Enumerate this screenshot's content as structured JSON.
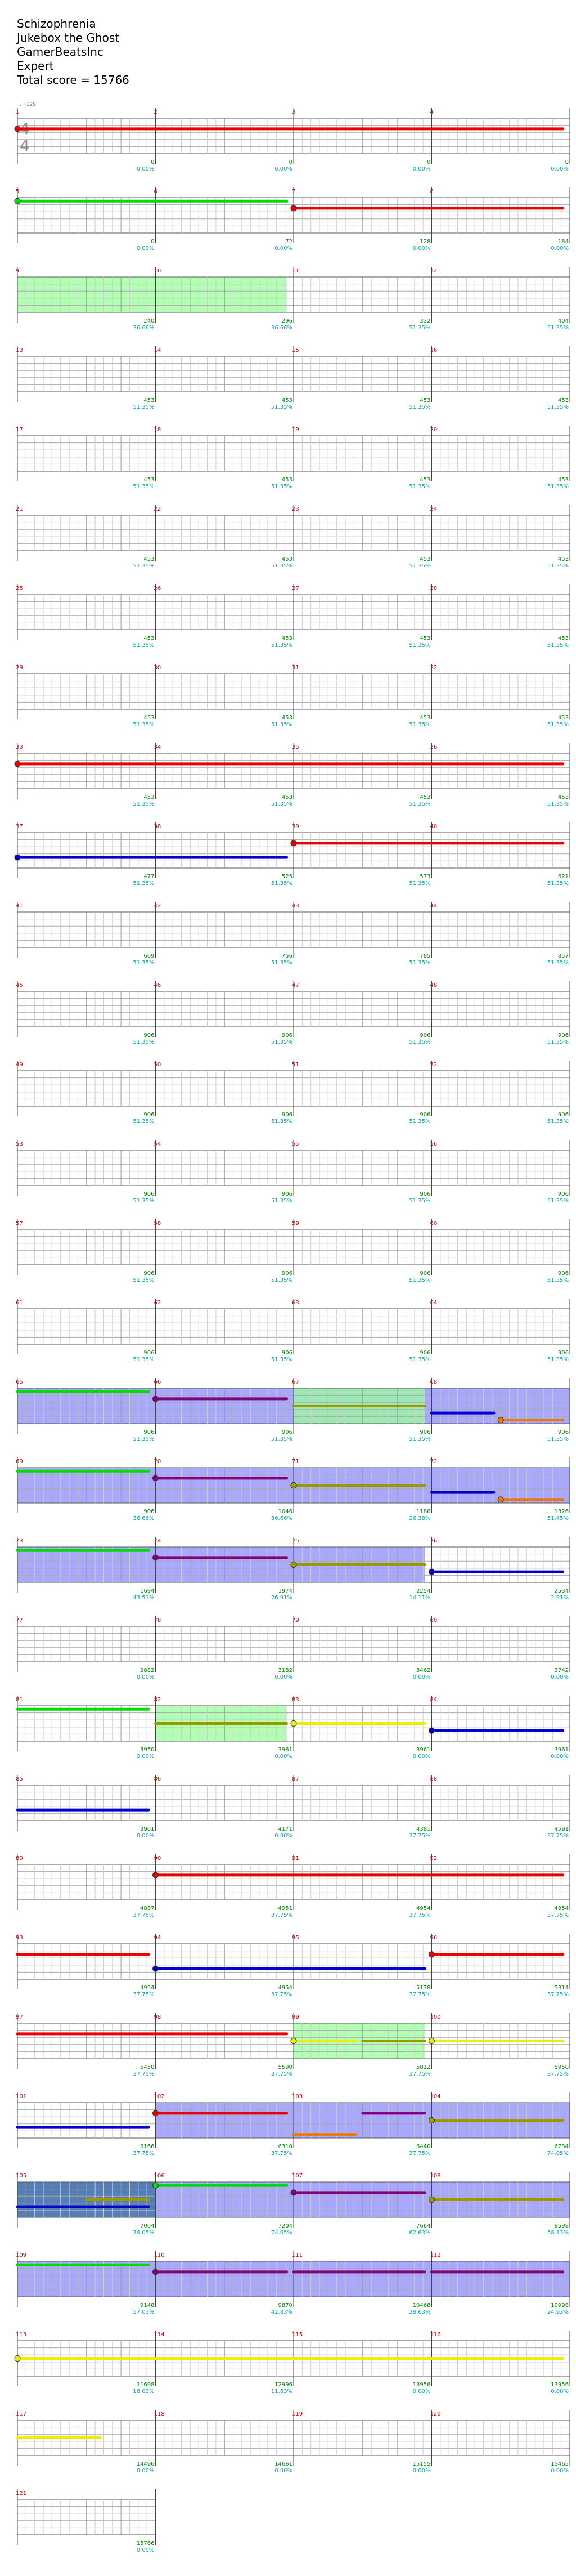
{
  "header": {
    "song": "Schizophrenia",
    "album": "Jukebox the Ghost",
    "charter": "GamerBeatsInc",
    "difficulty": "Expert",
    "total_score_label": "Total score = 15766"
  },
  "tempo_label": "♩=129",
  "time_signature": {
    "top": "4",
    "bottom": "4"
  },
  "colors": {
    "green_note": "#00dd00",
    "red_note": "#ee0000",
    "yellow_note": "#eeee00",
    "blue_note": "#0000cc",
    "orange_note": "#ee7700",
    "purple_note": "#800080",
    "olive_note": "#999900",
    "sp_fill": "#9999ff",
    "solo_fill": "#99ff99",
    "measure_number": "#cc0000",
    "score_text": "#008800",
    "percent_text": "#00aaaa",
    "multiplier_text": "#888888"
  },
  "measures": [
    {
      "n": 1,
      "score": "0",
      "pct": "0.00%"
    },
    {
      "n": 2,
      "score": "0",
      "pct": "0.00%"
    },
    {
      "n": 3,
      "score": "0",
      "pct": "0.00%"
    },
    {
      "n": 4,
      "score": "0",
      "pct": "0.00%"
    },
    {
      "n": 5,
      "score": "0",
      "pct": "0.00%"
    },
    {
      "n": 6,
      "score": "72",
      "pct": "0.00%"
    },
    {
      "n": 7,
      "score": "128",
      "pct": "0.00%"
    },
    {
      "n": 8,
      "score": "184",
      "pct": "0.00%"
    },
    {
      "n": 9,
      "score": "240",
      "pct": "36.66%"
    },
    {
      "n": 10,
      "score": "296",
      "pct": "36.66%"
    },
    {
      "n": 11,
      "score": "332",
      "pct": "51.35%"
    },
    {
      "n": 12,
      "score": "404",
      "pct": "51.35%"
    },
    {
      "n": 13,
      "score": "453",
      "pct": "51.35%"
    },
    {
      "n": 14,
      "score": "453",
      "pct": "51.35%"
    },
    {
      "n": 15,
      "score": "453",
      "pct": "51.35%"
    },
    {
      "n": 16,
      "score": "453",
      "pct": "51.35%"
    },
    {
      "n": 17,
      "score": "453",
      "pct": "51.35%"
    },
    {
      "n": 18,
      "score": "453",
      "pct": "51.35%"
    },
    {
      "n": 19,
      "score": "453",
      "pct": "51.35%"
    },
    {
      "n": 20,
      "score": "453",
      "pct": "51.35%"
    },
    {
      "n": 21,
      "score": "453",
      "pct": "51.35%"
    },
    {
      "n": 22,
      "score": "453",
      "pct": "51.35%"
    },
    {
      "n": 23,
      "score": "453",
      "pct": "51.35%"
    },
    {
      "n": 24,
      "score": "453",
      "pct": "51.35%"
    },
    {
      "n": 25,
      "score": "453",
      "pct": "51.35%"
    },
    {
      "n": 26,
      "score": "453",
      "pct": "51.35%"
    },
    {
      "n": 27,
      "score": "453",
      "pct": "51.35%"
    },
    {
      "n": 28,
      "score": "453",
      "pct": "51.35%"
    },
    {
      "n": 29,
      "score": "453",
      "pct": "51.35%"
    },
    {
      "n": 30,
      "score": "453",
      "pct": "51.35%"
    },
    {
      "n": 31,
      "score": "453",
      "pct": "51.35%"
    },
    {
      "n": 32,
      "score": "453",
      "pct": "51.35%"
    },
    {
      "n": 33,
      "score": "453",
      "pct": "51.35%"
    },
    {
      "n": 34,
      "score": "453",
      "pct": "51.35%"
    },
    {
      "n": 35,
      "score": "453",
      "pct": "51.35%"
    },
    {
      "n": 36,
      "score": "453",
      "pct": "51.35%"
    },
    {
      "n": 37,
      "score": "477",
      "pct": "51.35%"
    },
    {
      "n": 38,
      "score": "525",
      "pct": "51.35%"
    },
    {
      "n": 39,
      "score": "573",
      "pct": "51.35%"
    },
    {
      "n": 40,
      "score": "621",
      "pct": "51.35%"
    },
    {
      "n": 41,
      "score": "669",
      "pct": "51.35%"
    },
    {
      "n": 42,
      "score": "756",
      "pct": "51.35%"
    },
    {
      "n": 43,
      "score": "785",
      "pct": "51.35%"
    },
    {
      "n": 44,
      "score": "857",
      "pct": "51.35%"
    },
    {
      "n": 45,
      "score": "906",
      "pct": "51.35%"
    },
    {
      "n": 46,
      "score": "906",
      "pct": "51.35%"
    },
    {
      "n": 47,
      "score": "906",
      "pct": "51.35%"
    },
    {
      "n": 48,
      "score": "906",
      "pct": "51.35%"
    },
    {
      "n": 49,
      "score": "906",
      "pct": "51.35%"
    },
    {
      "n": 50,
      "score": "906",
      "pct": "51.35%"
    },
    {
      "n": 51,
      "score": "906",
      "pct": "51.35%"
    },
    {
      "n": 52,
      "score": "906",
      "pct": "51.35%"
    },
    {
      "n": 53,
      "score": "906",
      "pct": "51.35%"
    },
    {
      "n": 54,
      "score": "906",
      "pct": "51.35%"
    },
    {
      "n": 55,
      "score": "906",
      "pct": "51.35%"
    },
    {
      "n": 56,
      "score": "906",
      "pct": "51.35%"
    },
    {
      "n": 57,
      "score": "906",
      "pct": "51.35%"
    },
    {
      "n": 58,
      "score": "906",
      "pct": "51.35%"
    },
    {
      "n": 59,
      "score": "906",
      "pct": "51.35%"
    },
    {
      "n": 60,
      "score": "906",
      "pct": "51.35%"
    },
    {
      "n": 61,
      "score": "906",
      "pct": "51.35%"
    },
    {
      "n": 62,
      "score": "906",
      "pct": "51.35%"
    },
    {
      "n": 63,
      "score": "906",
      "pct": "51.35%"
    },
    {
      "n": 64,
      "score": "906",
      "pct": "51.35%"
    },
    {
      "n": 65,
      "score": "906",
      "pct": "51.35%"
    },
    {
      "n": 66,
      "score": "906",
      "pct": "51.35%"
    },
    {
      "n": 67,
      "score": "906",
      "pct": "51.35%"
    },
    {
      "n": 68,
      "score": "906",
      "pct": "51.35%"
    },
    {
      "n": 69,
      "score": "906",
      "pct": "36.66%"
    },
    {
      "n": 70,
      "score": "1046",
      "pct": "36.66%"
    },
    {
      "n": 71,
      "score": "1186",
      "pct": "26.38%"
    },
    {
      "n": 72,
      "score": "1326",
      "pct": "51.45%"
    },
    {
      "n": 73,
      "score": "1694",
      "pct": "43.51%"
    },
    {
      "n": 74,
      "score": "1974",
      "pct": "26.91%"
    },
    {
      "n": 75,
      "score": "2254",
      "pct": "14.11%"
    },
    {
      "n": 76,
      "score": "2534",
      "pct": "2.91%"
    },
    {
      "n": 77,
      "score": "2882",
      "pct": "0.00%"
    },
    {
      "n": 78,
      "score": "3182",
      "pct": "0.00%"
    },
    {
      "n": 79,
      "score": "3462",
      "pct": "0.00%"
    },
    {
      "n": 80,
      "score": "3742",
      "pct": "0.00%"
    },
    {
      "n": 81,
      "score": "3950",
      "pct": "0.00%"
    },
    {
      "n": 82,
      "score": "3961",
      "pct": "0.00%"
    },
    {
      "n": 83,
      "score": "3961",
      "pct": "0.00%"
    },
    {
      "n": 84,
      "score": "3961",
      "pct": "0.00%"
    },
    {
      "n": 85,
      "score": "3961",
      "pct": "0.00%"
    },
    {
      "n": 86,
      "score": "4171",
      "pct": "0.00%"
    },
    {
      "n": 87,
      "score": "4381",
      "pct": "37.75%"
    },
    {
      "n": 88,
      "score": "4591",
      "pct": "37.75%"
    },
    {
      "n": 89,
      "score": "4887",
      "pct": "37.75%"
    },
    {
      "n": 90,
      "score": "4951",
      "pct": "37.75%"
    },
    {
      "n": 91,
      "score": "4954",
      "pct": "37.75%"
    },
    {
      "n": 92,
      "score": "4954",
      "pct": "37.75%"
    },
    {
      "n": 93,
      "score": "4954",
      "pct": "37.75%"
    },
    {
      "n": 94,
      "score": "4954",
      "pct": "37.75%"
    },
    {
      "n": 95,
      "score": "5178",
      "pct": "37.75%"
    },
    {
      "n": 96,
      "score": "5314",
      "pct": "37.75%"
    },
    {
      "n": 97,
      "score": "5450",
      "pct": "37.75%"
    },
    {
      "n": 98,
      "score": "5590",
      "pct": "37.75%"
    },
    {
      "n": 99,
      "score": "5812",
      "pct": "37.75%"
    },
    {
      "n": 100,
      "score": "5950",
      "pct": "37.75%"
    },
    {
      "n": 101,
      "score": "6166",
      "pct": "37.75%"
    },
    {
      "n": 102,
      "score": "6310",
      "pct": "37.75%"
    },
    {
      "n": 103,
      "score": "6440",
      "pct": "37.75%"
    },
    {
      "n": 104,
      "score": "6734",
      "pct": "74.05%"
    },
    {
      "n": 105,
      "score": "7004",
      "pct": "74.05%"
    },
    {
      "n": 106,
      "score": "7204",
      "pct": "74.05%"
    },
    {
      "n": 107,
      "score": "7664",
      "pct": "62.63%"
    },
    {
      "n": 108,
      "score": "8598",
      "pct": "58.13%"
    },
    {
      "n": 109,
      "score": "9148",
      "pct": "57.03%"
    },
    {
      "n": 110,
      "score": "9870",
      "pct": "42.83%"
    },
    {
      "n": 111,
      "score": "10468",
      "pct": "28.63%"
    },
    {
      "n": 112,
      "score": "10998",
      "pct": "24.93%"
    },
    {
      "n": 113,
      "score": "11698",
      "pct": "18.03%"
    },
    {
      "n": 114,
      "score": "12996",
      "pct": "11.83%"
    },
    {
      "n": 115,
      "score": "13956",
      "pct": "0.00%"
    },
    {
      "n": 116,
      "score": "13956",
      "pct": "0.00%"
    },
    {
      "n": 117,
      "score": "14496",
      "pct": "0.00%"
    },
    {
      "n": 118,
      "score": "14661",
      "pct": "0.00%"
    },
    {
      "n": 119,
      "score": "15155",
      "pct": "0.00%"
    },
    {
      "n": 120,
      "score": "15465",
      "pct": "0.00%"
    },
    {
      "n": 121,
      "score": "15766",
      "pct": "0.00%"
    }
  ],
  "bands": [
    {
      "row": 3,
      "from": 0,
      "to": 1.95,
      "kind": "solo"
    },
    {
      "row": 17,
      "from": 0,
      "to": 4,
      "kind": "sp"
    },
    {
      "row": 17,
      "from": 2,
      "to": 2.95,
      "kind": "solo"
    },
    {
      "row": 18,
      "from": 0,
      "to": 4,
      "kind": "sp"
    },
    {
      "row": 19,
      "from": 0,
      "to": 2.95,
      "kind": "sp"
    },
    {
      "row": 21,
      "from": 1,
      "to": 1.95,
      "kind": "solo"
    },
    {
      "row": 25,
      "from": 2,
      "to": 2.95,
      "kind": "solo"
    },
    {
      "row": 26,
      "from": 1,
      "to": 4,
      "kind": "sp"
    },
    {
      "row": 27,
      "from": 0,
      "to": 4,
      "kind": "sp"
    },
    {
      "row": 27,
      "from": 0,
      "to": 1,
      "kind": "dark"
    },
    {
      "row": 28,
      "from": 0,
      "to": 4,
      "kind": "sp"
    }
  ],
  "lines": [
    {
      "row": 1,
      "from": 0,
      "to": 3.95,
      "color": "red",
      "dotStart": true
    },
    {
      "row": 2,
      "from": 0,
      "to": 1.95,
      "color": "green",
      "dotStart": true
    },
    {
      "row": 2,
      "from": 2,
      "to": 3.95,
      "color": "red",
      "dotStart": true
    },
    {
      "row": 9,
      "from": 0,
      "to": 3.95,
      "color": "red",
      "dotStart": true
    },
    {
      "row": 10,
      "from": 2,
      "to": 3.95,
      "color": "red",
      "dotStart": true
    },
    {
      "row": 10,
      "from": 0,
      "to": 1.95,
      "color": "blue",
      "dotStart": true
    },
    {
      "row": 17,
      "from": 0,
      "to": 0.95,
      "color": "green",
      "dotStart": false
    },
    {
      "row": 17,
      "from": 1,
      "to": 1.95,
      "color": "purple",
      "dotStart": true
    },
    {
      "row": 17,
      "from": 2,
      "to": 2.95,
      "color": "olive",
      "dotStart": false
    },
    {
      "row": 17,
      "from": 3,
      "to": 3.45,
      "color": "blue",
      "dotStart": false
    },
    {
      "row": 17,
      "from": 3.5,
      "to": 3.95,
      "color": "orange",
      "dotStart": true
    },
    {
      "row": 18,
      "from": 0,
      "to": 0.95,
      "color": "green",
      "dotStart": false
    },
    {
      "row": 18,
      "from": 1,
      "to": 1.95,
      "color": "purple",
      "dotStart": true
    },
    {
      "row": 18,
      "from": 2,
      "to": 2.95,
      "color": "olive",
      "dotStart": true
    },
    {
      "row": 18,
      "from": 3,
      "to": 3.45,
      "color": "blue",
      "dotStart": false
    },
    {
      "row": 18,
      "from": 3.5,
      "to": 3.95,
      "color": "orange",
      "dotStart": true
    },
    {
      "row": 19,
      "from": 0,
      "to": 0.95,
      "color": "green",
      "dotStart": false
    },
    {
      "row": 19,
      "from": 1,
      "to": 1.95,
      "color": "purple",
      "dotStart": true
    },
    {
      "row": 19,
      "from": 2,
      "to": 2.95,
      "color": "olive",
      "dotStart": true
    },
    {
      "row": 19,
      "from": 3,
      "to": 3.95,
      "color": "blue",
      "dotStart": true
    },
    {
      "row": 21,
      "from": 0,
      "to": 0.95,
      "color": "green",
      "dotStart": false
    },
    {
      "row": 21,
      "from": 1,
      "to": 1.95,
      "color": "olive",
      "dotStart": false
    },
    {
      "row": 21,
      "from": 2,
      "to": 2.95,
      "color": "yellow",
      "dotStart": true
    },
    {
      "row": 21,
      "from": 3,
      "to": 3.95,
      "color": "blue",
      "dotStart": true
    },
    {
      "row": 22,
      "from": 0,
      "to": 0.95,
      "color": "blue",
      "dotStart": false
    },
    {
      "row": 23,
      "from": 1,
      "to": 3.95,
      "color": "red",
      "dotStart": true
    },
    {
      "row": 24,
      "from": 0,
      "to": 0.95,
      "color": "red",
      "dotStart": false
    },
    {
      "row": 24,
      "from": 1,
      "to": 2.95,
      "color": "blue",
      "dotStart": true
    },
    {
      "row": 24,
      "from": 3,
      "to": 3.95,
      "color": "red",
      "dotStart": true
    },
    {
      "row": 25,
      "from": 0,
      "to": 1.95,
      "color": "red",
      "dotStart": false
    },
    {
      "row": 25,
      "from": 2,
      "to": 2.45,
      "color": "yellow",
      "dotStart": true
    },
    {
      "row": 25,
      "from": 2.5,
      "to": 2.95,
      "color": "olive",
      "dotStart": false
    },
    {
      "row": 25,
      "from": 3,
      "to": 3.95,
      "color": "yellow",
      "dotStart": true
    },
    {
      "row": 26,
      "from": 0,
      "to": 0.95,
      "color": "blue",
      "dotStart": false
    },
    {
      "row": 26,
      "from": 1,
      "to": 1.95,
      "color": "red",
      "dotStart": true
    },
    {
      "row": 26,
      "from": 2,
      "to": 2.45,
      "color": "orange",
      "dotStart": false
    },
    {
      "row": 26,
      "from": 2.5,
      "to": 2.95,
      "color": "purple",
      "dotStart": false
    },
    {
      "row": 26,
      "from": 3,
      "to": 3.95,
      "color": "olive",
      "dotStart": true
    },
    {
      "row": 27,
      "from": 0,
      "to": 0.95,
      "color": "blue",
      "dotStart": false
    },
    {
      "row": 27,
      "from": 0.5,
      "to": 0.95,
      "color": "olive",
      "dotStart": false
    },
    {
      "row": 27,
      "from": 1,
      "to": 1.95,
      "color": "green",
      "dotStart": true
    },
    {
      "row": 27,
      "from": 2,
      "to": 2.95,
      "color": "purple",
      "dotStart": true
    },
    {
      "row": 27,
      "from": 3,
      "to": 3.95,
      "color": "olive",
      "dotStart": true
    },
    {
      "row": 28,
      "from": 0,
      "to": 0.95,
      "color": "green",
      "dotStart": false
    },
    {
      "row": 28,
      "from": 1,
      "to": 1.95,
      "color": "purple",
      "dotStart": true
    },
    {
      "row": 28,
      "from": 2,
      "to": 2.95,
      "color": "purple",
      "dotStart": false
    },
    {
      "row": 28,
      "from": 3,
      "to": 3.95,
      "color": "purple",
      "dotStart": false
    },
    {
      "row": 29,
      "from": 0,
      "to": 3.95,
      "color": "yellow",
      "dotStart": true
    },
    {
      "row": 30,
      "from": 0,
      "to": 0.6,
      "color": "yellow",
      "dotStart": false
    }
  ]
}
